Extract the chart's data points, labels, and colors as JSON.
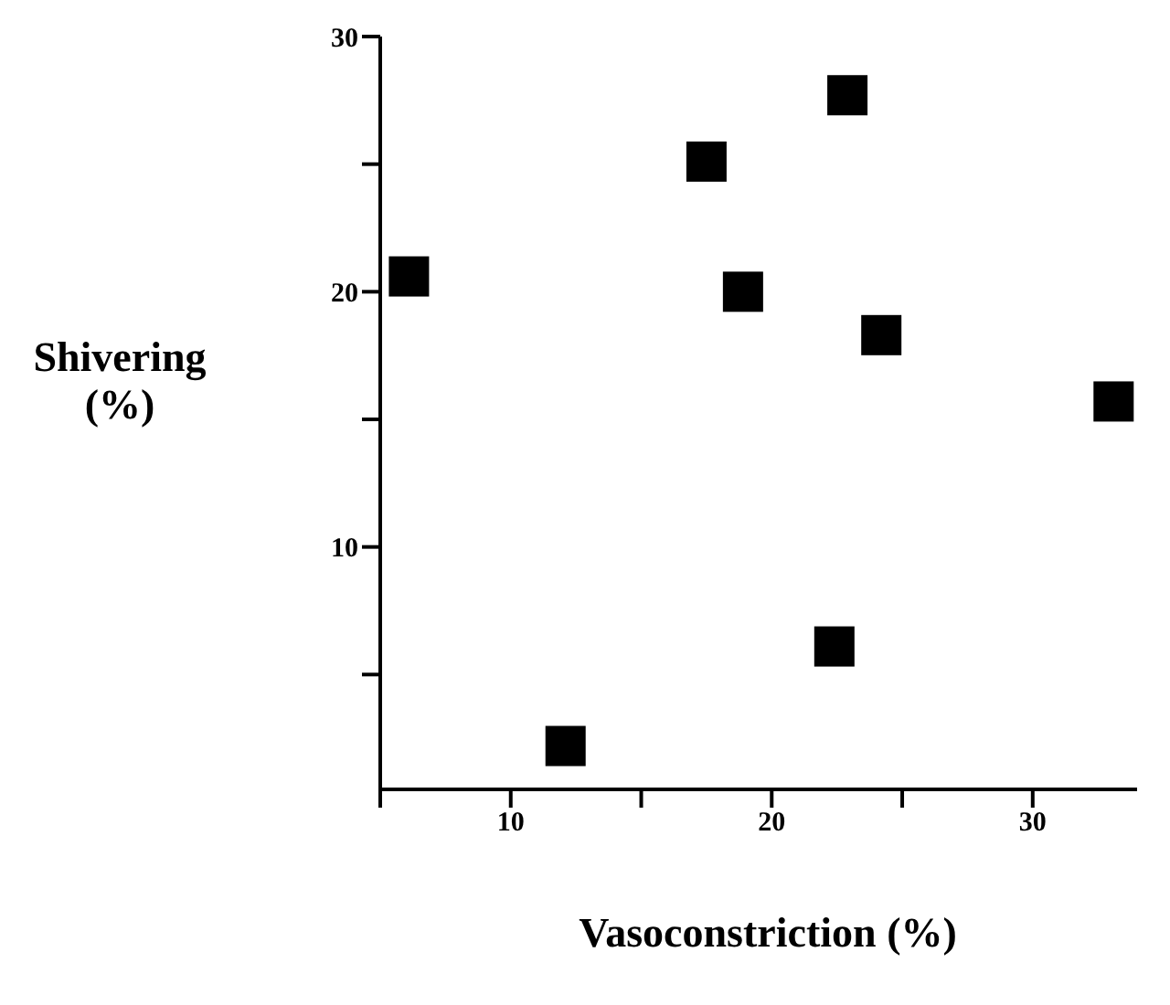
{
  "chart_data": {
    "type": "scatter",
    "xlabel": "Vasoconstriction (%)",
    "ylabel": "Shivering (%)",
    "x": [
      6.1,
      12.1,
      17.5,
      18.9,
      22.9,
      22.4,
      24.2,
      33.1
    ],
    "series": [
      {
        "color": "#000000",
        "values": [
          20.6,
          2.2,
          25.1,
          20.0,
          27.7,
          6.1,
          18.3,
          15.7
        ]
      }
    ],
    "xlim": [
      5,
      34
    ],
    "ylim": [
      0.5,
      30
    ],
    "xticks": [
      {
        "value": 5,
        "label": null
      },
      10,
      {
        "value": 15,
        "label": null
      },
      20,
      {
        "value": 25,
        "label": null
      },
      30
    ],
    "yticks": [
      {
        "value": 5,
        "label": null
      },
      10,
      {
        "value": 15,
        "label": null
      },
      20,
      {
        "value": 25,
        "label": null
      },
      30
    ],
    "marker": "square",
    "grid": false,
    "legend": false
  }
}
